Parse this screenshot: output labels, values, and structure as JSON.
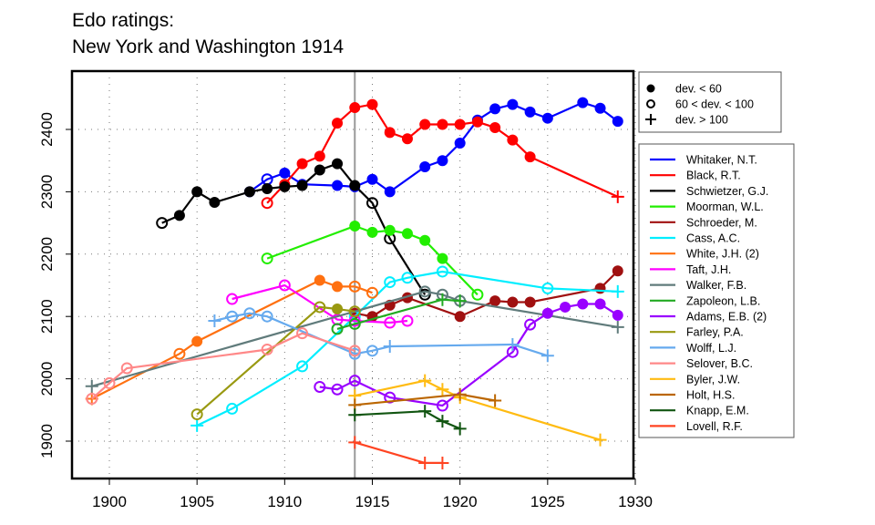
{
  "chart_data": {
    "type": "line",
    "title": "Edo ratings:",
    "subtitle": "New York and Washington 1914",
    "xlabel": "",
    "ylabel": "",
    "xlim": [
      1898,
      1930
    ],
    "ylim": [
      1855,
      2485
    ],
    "xticks": [
      1900,
      1905,
      1910,
      1915,
      1920,
      1925,
      1930
    ],
    "yticks": [
      1900,
      2000,
      2100,
      2200,
      2300,
      2400
    ],
    "grid": true,
    "reference_line_x": 1914,
    "marker_legend": {
      "placement": "top-right-outside",
      "entries": [
        {
          "marker": "filled-circle",
          "label": "dev. < 60"
        },
        {
          "marker": "open-circle",
          "label": "60 < dev. < 100"
        },
        {
          "marker": "plus",
          "label": "dev. > 100"
        }
      ]
    },
    "legend_placement": "right-outside",
    "series": [
      {
        "name": "Whitaker, N.T.",
        "color": "#0000ff",
        "points": [
          [
            1908,
            2300,
            "f"
          ],
          [
            1909,
            2320,
            "o"
          ],
          [
            1910,
            2330,
            "f"
          ],
          [
            1911,
            2312,
            "f"
          ],
          [
            1913,
            2310,
            "f"
          ],
          [
            1914,
            2308,
            "f"
          ],
          [
            1915,
            2320,
            "f"
          ],
          [
            1916,
            2300,
            "f"
          ],
          [
            1918,
            2340,
            "f"
          ],
          [
            1919,
            2350,
            "f"
          ],
          [
            1920,
            2378,
            "f"
          ],
          [
            1921,
            2415,
            "f"
          ],
          [
            1922,
            2433,
            "f"
          ],
          [
            1923,
            2440,
            "f"
          ],
          [
            1924,
            2428,
            "f"
          ],
          [
            1925,
            2418,
            "f"
          ],
          [
            1927,
            2443,
            "f"
          ],
          [
            1928,
            2434,
            "f"
          ],
          [
            1929,
            2413,
            "f"
          ]
        ]
      },
      {
        "name": "Black, R.T.",
        "color": "#ff0000",
        "points": [
          [
            1909,
            2282,
            "o"
          ],
          [
            1910,
            2312,
            "f"
          ],
          [
            1911,
            2345,
            "f"
          ],
          [
            1912,
            2357,
            "f"
          ],
          [
            1913,
            2410,
            "f"
          ],
          [
            1914,
            2435,
            "f"
          ],
          [
            1915,
            2440,
            "f"
          ],
          [
            1916,
            2395,
            "f"
          ],
          [
            1917,
            2385,
            "f"
          ],
          [
            1918,
            2408,
            "f"
          ],
          [
            1919,
            2408,
            "f"
          ],
          [
            1920,
            2408,
            "f"
          ],
          [
            1921,
            2412,
            "f"
          ],
          [
            1922,
            2403,
            "f"
          ],
          [
            1923,
            2383,
            "f"
          ],
          [
            1924,
            2356,
            "f"
          ],
          [
            1929,
            2292,
            "n"
          ]
        ]
      },
      {
        "name": "Schwietzer, G.J.",
        "color": "#000000",
        "points": [
          [
            1903,
            2250,
            "o"
          ],
          [
            1904,
            2262,
            "f"
          ],
          [
            1905,
            2300,
            "f"
          ],
          [
            1906,
            2283,
            "f"
          ],
          [
            1908,
            2300,
            "f"
          ],
          [
            1909,
            2305,
            "f"
          ],
          [
            1910,
            2308,
            "f"
          ],
          [
            1911,
            2310,
            "f"
          ],
          [
            1912,
            2335,
            "f"
          ],
          [
            1913,
            2345,
            "f"
          ],
          [
            1914,
            2310,
            "f"
          ],
          [
            1915,
            2282,
            "o"
          ],
          [
            1916,
            2225,
            "o"
          ],
          [
            1918,
            2135,
            "o"
          ]
        ]
      },
      {
        "name": "Moorman, W.L.",
        "color": "#22ee00",
        "points": [
          [
            1909,
            2193,
            "o"
          ],
          [
            1914,
            2245,
            "f"
          ],
          [
            1915,
            2235,
            "f"
          ],
          [
            1916,
            2238,
            "f"
          ],
          [
            1917,
            2233,
            "f"
          ],
          [
            1918,
            2222,
            "f"
          ],
          [
            1919,
            2193,
            "f"
          ],
          [
            1921,
            2135,
            "o"
          ]
        ]
      },
      {
        "name": "Schroeder, M.",
        "color": "#a01010",
        "points": [
          [
            1914,
            2105,
            "f"
          ],
          [
            1915,
            2100,
            "f"
          ],
          [
            1916,
            2118,
            "f"
          ],
          [
            1917,
            2130,
            "f"
          ],
          [
            1920,
            2100,
            "f"
          ],
          [
            1922,
            2125,
            "f"
          ],
          [
            1923,
            2123,
            "f"
          ],
          [
            1924,
            2123,
            "f"
          ],
          [
            1928,
            2145,
            "f"
          ],
          [
            1929,
            2173,
            "f"
          ]
        ]
      },
      {
        "name": "Cass, A.C.",
        "color": "#00eeff",
        "points": [
          [
            1905,
            1925,
            "n"
          ],
          [
            1907,
            1952,
            "o"
          ],
          [
            1911,
            2020,
            "o"
          ],
          [
            1914,
            2100,
            "o"
          ],
          [
            1916,
            2155,
            "o"
          ],
          [
            1917,
            2162,
            "o"
          ],
          [
            1919,
            2172,
            "o"
          ],
          [
            1925,
            2145,
            "o"
          ],
          [
            1929,
            2140,
            "n"
          ]
        ]
      },
      {
        "name": "White, J.H. (2)",
        "color": "#ff7010",
        "points": [
          [
            1899,
            1968,
            "n"
          ],
          [
            1904,
            2040,
            "o"
          ],
          [
            1905,
            2060,
            "f"
          ],
          [
            1912,
            2158,
            "f"
          ],
          [
            1913,
            2148,
            "f"
          ],
          [
            1914,
            2148,
            "o"
          ],
          [
            1915,
            2138,
            "o"
          ]
        ]
      },
      {
        "name": "Taft, J.H.",
        "color": "#ff00ff",
        "points": [
          [
            1907,
            2128,
            "o"
          ],
          [
            1910,
            2150,
            "o"
          ],
          [
            1913,
            2095,
            "o"
          ],
          [
            1914,
            2093,
            "o"
          ],
          [
            1916,
            2090,
            "o"
          ],
          [
            1917,
            2093,
            "o"
          ]
        ]
      },
      {
        "name": "Walker, F.B.",
        "color": "#607b7b",
        "points": [
          [
            1899,
            1988,
            "n"
          ],
          [
            1918,
            2140,
            "o"
          ],
          [
            1919,
            2135,
            "o"
          ],
          [
            1920,
            2125,
            "o"
          ],
          [
            1929,
            2083,
            "n"
          ]
        ]
      },
      {
        "name": "Zapoleon, L.B.",
        "color": "#22aa22",
        "points": [
          [
            1913,
            2080,
            "o"
          ],
          [
            1914,
            2088,
            "o"
          ],
          [
            1919,
            2127,
            "n"
          ],
          [
            1920,
            2125,
            "n"
          ]
        ]
      },
      {
        "name": "Adams, E.B. (2)",
        "color": "#9900ff",
        "points": [
          [
            1912,
            1987,
            "o"
          ],
          [
            1913,
            1983,
            "o"
          ],
          [
            1914,
            1997,
            "o"
          ],
          [
            1916,
            1970,
            "o"
          ],
          [
            1919,
            1957,
            "o"
          ],
          [
            1923,
            2043,
            "o"
          ],
          [
            1924,
            2087,
            "o"
          ],
          [
            1925,
            2105,
            "f"
          ],
          [
            1926,
            2115,
            "f"
          ],
          [
            1927,
            2120,
            "f"
          ],
          [
            1928,
            2120,
            "f"
          ],
          [
            1929,
            2102,
            "f"
          ]
        ]
      },
      {
        "name": "Farley, P.A.",
        "color": "#999911",
        "points": [
          [
            1905,
            1943,
            "o"
          ],
          [
            1912,
            2115,
            "o"
          ],
          [
            1913,
            2112,
            "f"
          ],
          [
            1914,
            2108,
            "o"
          ]
        ]
      },
      {
        "name": "Wolff, L.J.",
        "color": "#66aaee",
        "points": [
          [
            1906,
            2093,
            "n"
          ],
          [
            1907,
            2100,
            "o"
          ],
          [
            1908,
            2105,
            "o"
          ],
          [
            1909,
            2100,
            "o"
          ],
          [
            1914,
            2040,
            "o"
          ],
          [
            1915,
            2045,
            "o"
          ],
          [
            1916,
            2052,
            "n"
          ],
          [
            1923,
            2055,
            "n"
          ],
          [
            1925,
            2037,
            "n"
          ]
        ]
      },
      {
        "name": "Selover, B.C.",
        "color": "#ff8888",
        "points": [
          [
            1899,
            1968,
            "o"
          ],
          [
            1900,
            1993,
            "o"
          ],
          [
            1901,
            2017,
            "o"
          ],
          [
            1909,
            2047,
            "o"
          ],
          [
            1911,
            2073,
            "o"
          ],
          [
            1914,
            2045,
            "o"
          ]
        ]
      },
      {
        "name": "Byler, J.W.",
        "color": "#ffbb11",
        "points": [
          [
            1914,
            1973,
            "n"
          ],
          [
            1918,
            1997,
            "n"
          ],
          [
            1919,
            1983,
            "n"
          ],
          [
            1920,
            1970,
            "n"
          ],
          [
            1928,
            1902,
            "n"
          ]
        ]
      },
      {
        "name": "Holt, H.S.",
        "color": "#bb6600",
        "points": [
          [
            1914,
            1958,
            "n"
          ],
          [
            1920,
            1975,
            "n"
          ],
          [
            1922,
            1965,
            "n"
          ]
        ]
      },
      {
        "name": "Knapp, E.M.",
        "color": "#115511",
        "points": [
          [
            1914,
            1942,
            "n"
          ],
          [
            1918,
            1948,
            "n"
          ],
          [
            1919,
            1932,
            "n"
          ],
          [
            1920,
            1920,
            "n"
          ]
        ]
      },
      {
        "name": "Lovell, R.F.",
        "color": "#ff4422",
        "points": [
          [
            1914,
            1898,
            "n"
          ],
          [
            1918,
            1865,
            "n"
          ],
          [
            1919,
            1865,
            "n"
          ]
        ]
      }
    ]
  }
}
